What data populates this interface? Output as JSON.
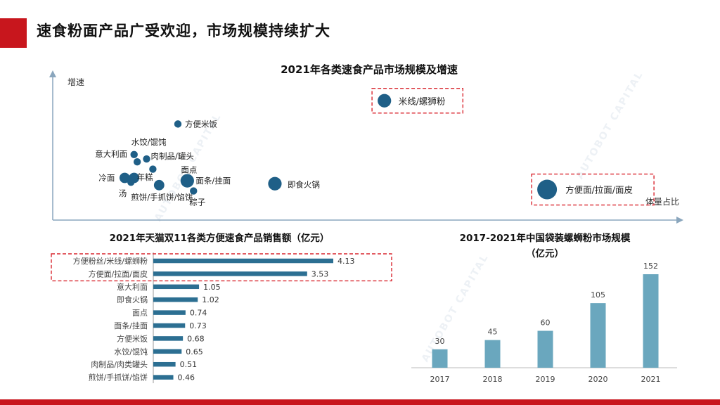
{
  "page": {
    "title": "速食粉面产品广受欢迎，市场规模持续扩大"
  },
  "watermark": "AUTOBOT CAPITAL",
  "colors": {
    "accent": "#c8161d",
    "scatter": "#1f5f87",
    "hbar": "#2c6f92",
    "vbar": "#6aa7be",
    "dash": "#d9262f"
  },
  "chart_data": [
    {
      "type": "scatter",
      "title": "2021年各类速食产品市场规模及增速",
      "xlabel": "体量占比",
      "ylabel": "增速",
      "points": [
        {
          "label": "米线/螺狮粉",
          "x": 0.53,
          "y": 0.82,
          "size": 3,
          "highlight": true
        },
        {
          "label": "方便米饭",
          "x": 0.2,
          "y": 0.66,
          "size": 1
        },
        {
          "label": "水饺/馄饨",
          "x": 0.13,
          "y": 0.45,
          "size": 1
        },
        {
          "label": "肉制品/罐头",
          "x": 0.15,
          "y": 0.42,
          "size": 1
        },
        {
          "label": "意大利面",
          "x": 0.135,
          "y": 0.4,
          "size": 1
        },
        {
          "label": "面点",
          "x": 0.16,
          "y": 0.35,
          "size": 1
        },
        {
          "label": "冷面",
          "x": 0.115,
          "y": 0.29,
          "size": 2
        },
        {
          "label": "年糕",
          "x": 0.13,
          "y": 0.29,
          "size": 2
        },
        {
          "label": "面条/挂面",
          "x": 0.215,
          "y": 0.27,
          "size": 3
        },
        {
          "label": "汤",
          "x": 0.125,
          "y": 0.26,
          "size": 1
        },
        {
          "label": "即食火锅",
          "x": 0.355,
          "y": 0.25,
          "size": 3
        },
        {
          "label": "煎饼/手抓饼/馅饼",
          "x": 0.17,
          "y": 0.24,
          "size": 2
        },
        {
          "label": "粽子",
          "x": 0.225,
          "y": 0.2,
          "size": 1
        },
        {
          "label": "方便面/拉面/面皮",
          "x": 0.79,
          "y": 0.21,
          "size": 5,
          "highlight": true
        }
      ]
    },
    {
      "type": "bar",
      "orientation": "horizontal",
      "title": "2021年天猫双11各类方便速食产品销售额（亿元）",
      "categories": [
        "方便粉丝/米线/螺蛳粉",
        "方便面/拉面/面皮",
        "意大利面",
        "即食火锅",
        "面点",
        "面条/挂面",
        "方便米饭",
        "水饺/馄饨",
        "肉制品/肉类罐头",
        "煎饼/手抓饼/馅饼"
      ],
      "values": [
        4.13,
        3.53,
        1.05,
        1.02,
        0.74,
        0.73,
        0.68,
        0.65,
        0.51,
        0.46
      ],
      "value_labels": [
        "4.13",
        "3.53",
        "1.05",
        "1.02",
        "0.74",
        "0.73",
        "0.68",
        "0.65",
        "0.51",
        "0.46"
      ],
      "highlight": [
        0,
        1
      ]
    },
    {
      "type": "bar",
      "title": "2017-2021年中国袋装螺蛳粉市场规模",
      "subtitle": "（亿元）",
      "categories": [
        "2017",
        "2018",
        "2019",
        "2020",
        "2021"
      ],
      "values": [
        30,
        45,
        60,
        105,
        152
      ],
      "value_labels": [
        "30",
        "45",
        "60",
        "105",
        "152"
      ],
      "ylim": [
        0,
        160
      ]
    }
  ]
}
